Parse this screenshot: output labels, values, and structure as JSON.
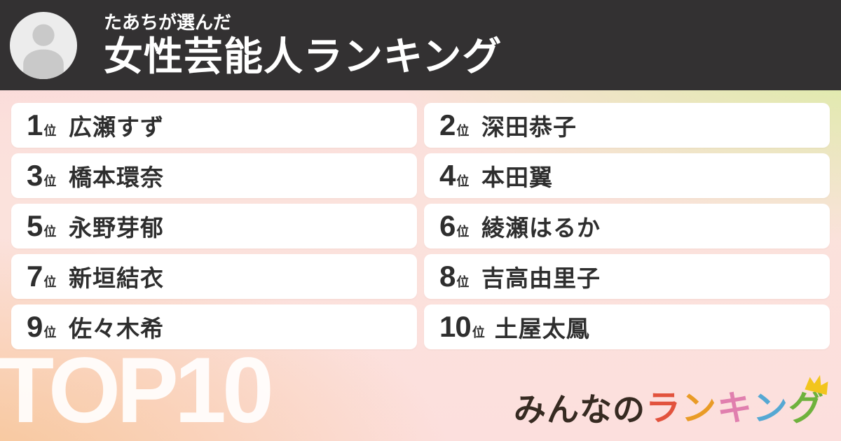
{
  "header": {
    "author_label": "たあちが選んだ",
    "title": "女性芸能人ランキング"
  },
  "ranking": {
    "rank_suffix": "位",
    "items": [
      {
        "rank": "1",
        "name": "広瀬すず"
      },
      {
        "rank": "2",
        "name": "深田恭子"
      },
      {
        "rank": "3",
        "name": "橋本環奈"
      },
      {
        "rank": "4",
        "name": "本田翼"
      },
      {
        "rank": "5",
        "name": "永野芽郁"
      },
      {
        "rank": "6",
        "name": "綾瀬はるか"
      },
      {
        "rank": "7",
        "name": "新垣結衣"
      },
      {
        "rank": "8",
        "name": "吉高由里子"
      },
      {
        "rank": "9",
        "name": "佐々木希"
      },
      {
        "rank": "10",
        "name": "土屋太鳳"
      }
    ]
  },
  "footer": {
    "top_label": "TOP10",
    "logo": {
      "prefix": "みんなの",
      "prefix_color": "#362a21",
      "colored_chars": [
        {
          "char": "ラ",
          "color": "#e2533d"
        },
        {
          "char": "ン",
          "color": "#e99b26"
        },
        {
          "char": "キ",
          "color": "#e07fae"
        },
        {
          "char": "ン",
          "color": "#55a8d3"
        },
        {
          "char": "グ",
          "color": "#6fb23d"
        }
      ],
      "crown_color": "#f2c51d"
    }
  },
  "colors": {
    "header_bg": "#333132",
    "card_bg": "#ffffff",
    "card_text": "#2e2e2e",
    "bg_top_left": "#fad8da",
    "bg_top_right": "#d7ef9c",
    "bg_bottom_left": "#f7c493",
    "bg_bottom_right": "#fcdede",
    "top_label_color": "rgba(255,255,255,0.9)",
    "avatar_bg": "#ececec",
    "avatar_glyph": "#c9c9c9"
  }
}
